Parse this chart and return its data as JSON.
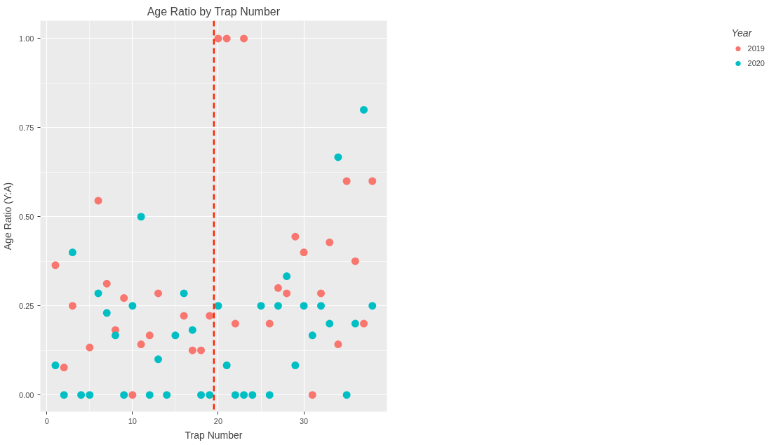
{
  "chart_data": {
    "type": "scatter",
    "title": "Age Ratio by Trap Number",
    "xlabel": "Trap Number",
    "ylabel": "Age Ratio (Y:A)",
    "legend_title": "Year",
    "legend": "right",
    "grid": true,
    "marker": "circle",
    "xlim": [
      -0.76,
      39.7
    ],
    "ylim": [
      -0.047,
      1.05
    ],
    "xticks": [
      0,
      10,
      20,
      30
    ],
    "yticks": [
      {
        "value": 0,
        "label": "0.00"
      },
      {
        "value": 0.25,
        "label": "0.25"
      },
      {
        "value": 0.5,
        "label": "0.50"
      },
      {
        "value": 0.75,
        "label": "0.75"
      },
      {
        "value": 1,
        "label": "1.00"
      }
    ],
    "ref_lines": [
      {
        "axis": "x",
        "value": 19.5,
        "label": null,
        "color": "#ff2200",
        "line_style": "dashed"
      }
    ],
    "series": [
      {
        "name": "2019",
        "color": "#f8766d",
        "x": [
          1,
          2,
          3,
          5,
          6,
          7,
          8,
          9,
          10,
          11,
          12,
          13,
          16,
          17,
          18,
          19,
          20,
          21,
          22,
          23,
          26,
          27,
          28,
          29,
          30,
          31,
          32,
          33,
          34,
          35,
          36,
          37,
          38
        ],
        "values": [
          0.364,
          0.077,
          0.25,
          0.133,
          0.545,
          0.312,
          0.182,
          0.272,
          0,
          0.142,
          0.167,
          0.285,
          0.222,
          0.125,
          0.125,
          0.222,
          1,
          1,
          0.2,
          1,
          0.2,
          0.3,
          0.285,
          0.444,
          0.4,
          0,
          0.285,
          0.428,
          0.142,
          0.6,
          0.375,
          0.2,
          0.6
        ]
      },
      {
        "name": "2020",
        "color": "#00bfc4",
        "x": [
          1,
          2,
          3,
          4,
          5,
          6,
          7,
          8,
          9,
          10,
          11,
          12,
          13,
          14,
          15,
          16,
          17,
          18,
          19,
          20,
          21,
          22,
          23,
          24,
          25,
          26,
          27,
          28,
          29,
          30,
          31,
          32,
          33,
          34,
          35,
          36,
          37,
          38
        ],
        "values": [
          0.083,
          0,
          0.4,
          0,
          0,
          0.285,
          0.23,
          0.167,
          0,
          0.25,
          0.5,
          0,
          0.1,
          0,
          0.167,
          0.285,
          0.182,
          0,
          0,
          0.25,
          0.083,
          0,
          0,
          0,
          0.25,
          0,
          0.25,
          0.333,
          0.083,
          0.25,
          0.167,
          0.25,
          0.2,
          0.667,
          0,
          0.2,
          0.8,
          0.25
        ]
      }
    ]
  }
}
